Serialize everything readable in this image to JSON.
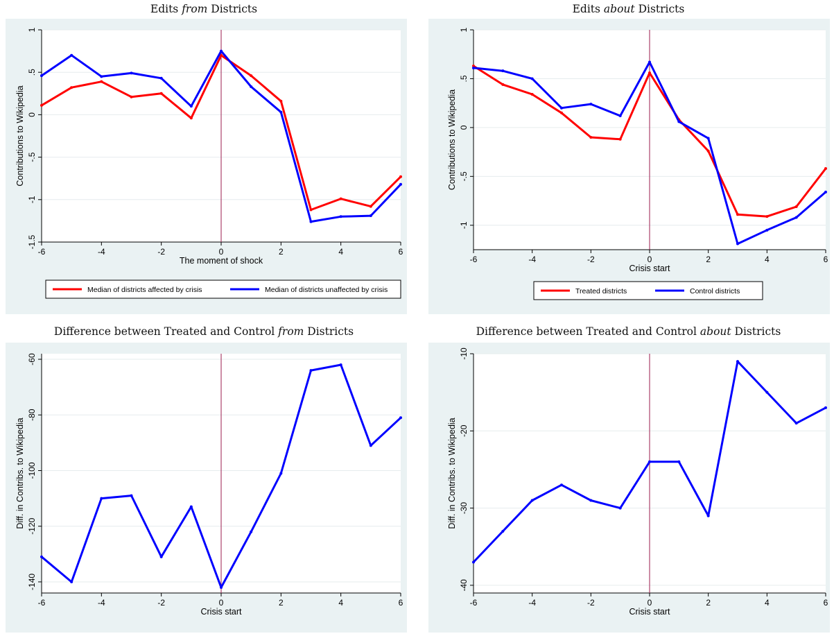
{
  "colors": {
    "background": "#eaf2f3",
    "plot_area": "#ffffff",
    "treated": "#ff0000",
    "control": "#0000ff",
    "difference": "#0000ff",
    "event_line": "#9b1b4e",
    "grid": "#e6ecee"
  },
  "chart_data": [
    {
      "id": "from",
      "type": "line",
      "title": {
        "before": "Edits ",
        "emph": "from",
        "after": " Districts"
      },
      "xlabel": "The moment of shock",
      "ylabel": "Contributions to Wikipedia",
      "xlim": [
        -6,
        6
      ],
      "ylim": [
        -1.5,
        1
      ],
      "xticks": [
        -6,
        -4,
        -2,
        0,
        2,
        4,
        6
      ],
      "yticks": [
        -1.5,
        -1,
        -0.5,
        0,
        0.5,
        1
      ],
      "ytick_labels": [
        "-1.5",
        "-1",
        "-.5",
        "0",
        ".5",
        "1"
      ],
      "grid": true,
      "event_line_x": 0,
      "legend_position": "bottom",
      "x": [
        -6,
        -5,
        -4,
        -3,
        -2,
        -1,
        0,
        1,
        2,
        3,
        4,
        5,
        6
      ],
      "series": [
        {
          "name": "Median of districts affected by crisis",
          "color": "#ff0000",
          "values": [
            0.11,
            0.32,
            0.39,
            0.21,
            0.25,
            -0.04,
            0.7,
            0.46,
            0.16,
            -1.12,
            -0.99,
            -1.08,
            -0.73
          ]
        },
        {
          "name": "Median of districts unaffected by crisis",
          "color": "#0000ff",
          "values": [
            0.46,
            0.7,
            0.45,
            0.49,
            0.43,
            0.1,
            0.75,
            0.33,
            0.03,
            -1.26,
            -1.2,
            -1.19,
            -0.82
          ]
        }
      ]
    },
    {
      "id": "about",
      "type": "line",
      "title": {
        "before": "Edits ",
        "emph": "about",
        "after": " Districts"
      },
      "xlabel": "Crisis start",
      "ylabel": "Contributions to Wikipedia",
      "xlim": [
        -6,
        6
      ],
      "ylim": [
        -1.25,
        1
      ],
      "xticks": [
        -6,
        -4,
        -2,
        0,
        2,
        4,
        6
      ],
      "yticks": [
        -1,
        -0.5,
        0,
        0.5,
        1
      ],
      "ytick_labels": [
        "-1",
        "-.5",
        "0",
        ".5",
        "1"
      ],
      "grid": true,
      "event_line_x": 0,
      "legend_position": "bottom",
      "x": [
        -6,
        -5,
        -4,
        -3,
        -2,
        -1,
        0,
        1,
        2,
        3,
        4,
        5,
        6
      ],
      "series": [
        {
          "name": "Treated districts",
          "color": "#ff0000",
          "values": [
            0.63,
            0.44,
            0.34,
            0.15,
            -0.1,
            -0.12,
            0.56,
            0.08,
            -0.24,
            -0.89,
            -0.91,
            -0.81,
            -0.42
          ]
        },
        {
          "name": "Control districts",
          "color": "#0000ff",
          "values": [
            0.61,
            0.58,
            0.5,
            0.2,
            0.24,
            0.12,
            0.67,
            0.06,
            -0.11,
            -1.19,
            -1.05,
            -0.92,
            -0.66
          ]
        }
      ]
    },
    {
      "id": "diff-from",
      "type": "line",
      "title": {
        "before": "Difference between Treated and Control ",
        "emph": "from",
        "after": " Districts"
      },
      "xlabel": "Crisis start",
      "ylabel": "Diff. in Contribs. to Wikipedia",
      "xlim": [
        -6,
        6
      ],
      "ylim": [
        -144,
        -58
      ],
      "xticks": [
        -6,
        -4,
        -2,
        0,
        2,
        4,
        6
      ],
      "yticks": [
        -140,
        -120,
        -100,
        -80,
        -60
      ],
      "ytick_labels": [
        "-140",
        "-120",
        "-100",
        "-80",
        "-60"
      ],
      "grid": true,
      "event_line_x": 0,
      "x": [
        -6,
        -5,
        -4,
        -3,
        -2,
        -1,
        0,
        1,
        2,
        3,
        4,
        5,
        6
      ],
      "series": [
        {
          "color": "#0000ff",
          "values": [
            -131,
            -140,
            -110,
            -109,
            -131,
            -113,
            -142,
            -122,
            -101,
            -64,
            -62,
            -91,
            -81
          ]
        }
      ]
    },
    {
      "id": "diff-about",
      "type": "line",
      "title": {
        "before": "Difference between Treated and Control ",
        "emph": "about",
        "after": " Districts"
      },
      "xlabel": "Crisis start",
      "ylabel": "Diff. in Contribs. to Wikipedia",
      "xlim": [
        -6,
        6
      ],
      "ylim": [
        -41,
        -10
      ],
      "xticks": [
        -6,
        -4,
        -2,
        0,
        2,
        4,
        6
      ],
      "yticks": [
        -40,
        -30,
        -20,
        -10
      ],
      "ytick_labels": [
        "-40",
        "-30",
        "-20",
        "-10"
      ],
      "grid": true,
      "event_line_x": 0,
      "x": [
        -6,
        -5,
        -4,
        -3,
        -2,
        -1,
        0,
        1,
        2,
        3,
        4,
        5,
        6
      ],
      "series": [
        {
          "color": "#0000ff",
          "values": [
            -37,
            -33,
            -29,
            -27,
            -29,
            -30,
            -24,
            -24,
            -31,
            -11,
            -15,
            -19,
            -17
          ]
        }
      ]
    }
  ]
}
